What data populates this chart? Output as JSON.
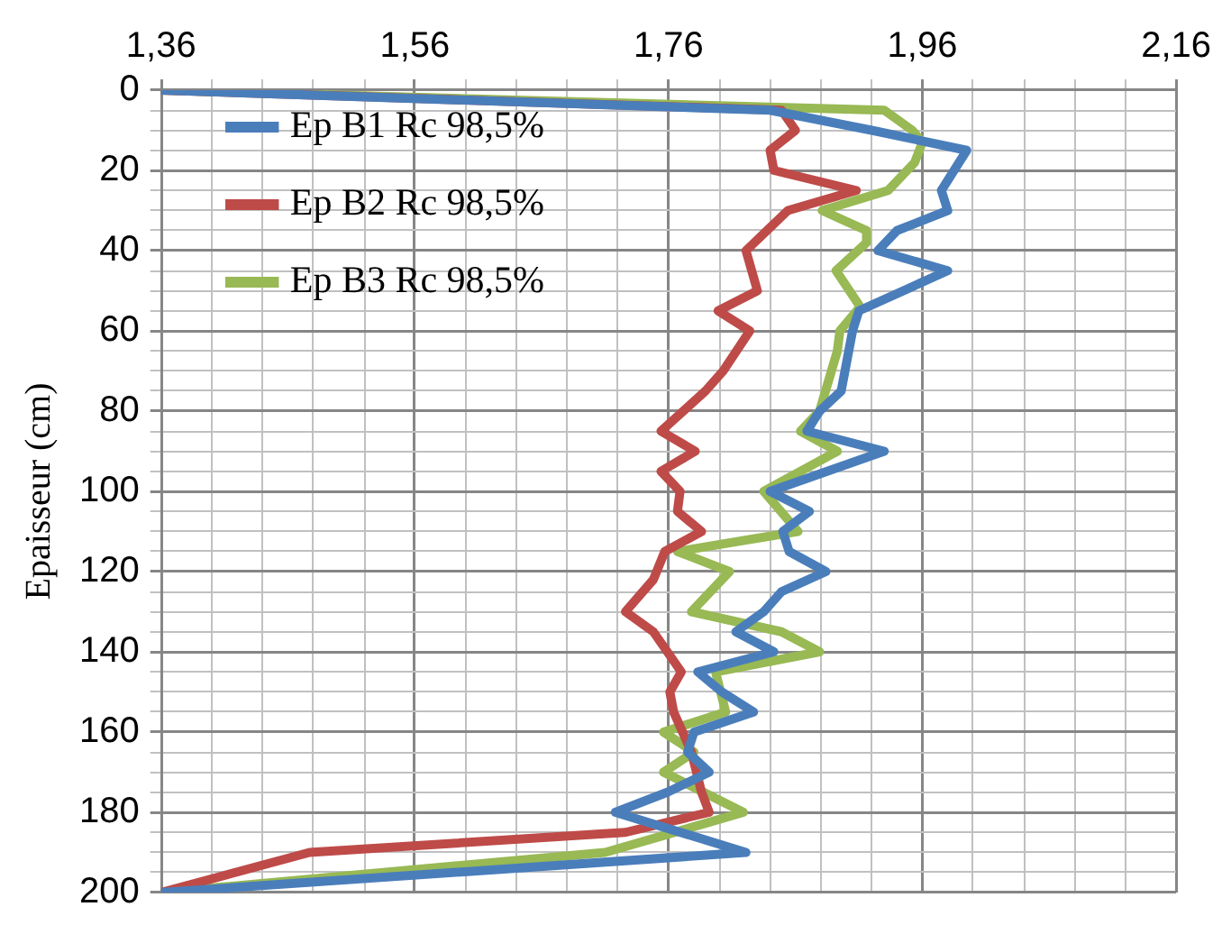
{
  "chart_data": {
    "type": "line",
    "ylabel": "Epaisseur (cm)",
    "xlim": [
      1.36,
      2.16
    ],
    "ylim": [
      200,
      0
    ],
    "xticks": [
      {
        "value": 1.36,
        "label": "1,36"
      },
      {
        "value": 1.4,
        "label": null
      },
      {
        "value": 1.44,
        "label": null
      },
      {
        "value": 1.48,
        "label": null
      },
      {
        "value": 1.52,
        "label": null
      },
      {
        "value": 1.56,
        "label": "1,56"
      },
      {
        "value": 1.6,
        "label": null
      },
      {
        "value": 1.64,
        "label": null
      },
      {
        "value": 1.68,
        "label": null
      },
      {
        "value": 1.72,
        "label": null
      },
      {
        "value": 1.76,
        "label": "1,76"
      },
      {
        "value": 1.8,
        "label": null
      },
      {
        "value": 1.84,
        "label": null
      },
      {
        "value": 1.88,
        "label": null
      },
      {
        "value": 1.92,
        "label": null
      },
      {
        "value": 1.96,
        "label": "1,96"
      },
      {
        "value": 2.0,
        "label": null
      },
      {
        "value": 2.04,
        "label": null
      },
      {
        "value": 2.08,
        "label": null
      },
      {
        "value": 2.12,
        "label": null
      },
      {
        "value": 2.16,
        "label": "2,16"
      }
    ],
    "yticks": [
      0,
      {
        "value": 5,
        "label": null
      },
      {
        "value": 10,
        "label": null
      },
      {
        "value": 15,
        "label": null
      },
      20,
      {
        "value": 25,
        "label": null
      },
      {
        "value": 30,
        "label": null
      },
      {
        "value": 35,
        "label": null
      },
      40,
      {
        "value": 45,
        "label": null
      },
      {
        "value": 50,
        "label": null
      },
      {
        "value": 55,
        "label": null
      },
      60,
      {
        "value": 65,
        "label": null
      },
      {
        "value": 70,
        "label": null
      },
      {
        "value": 75,
        "label": null
      },
      80,
      {
        "value": 85,
        "label": null
      },
      {
        "value": 90,
        "label": null
      },
      {
        "value": 95,
        "label": null
      },
      100,
      {
        "value": 105,
        "label": null
      },
      {
        "value": 110,
        "label": null
      },
      {
        "value": 115,
        "label": null
      },
      120,
      {
        "value": 125,
        "label": null
      },
      {
        "value": 130,
        "label": null
      },
      {
        "value": 135,
        "label": null
      },
      140,
      {
        "value": 145,
        "label": null
      },
      {
        "value": 150,
        "label": null
      },
      {
        "value": 155,
        "label": null
      },
      160,
      {
        "value": 165,
        "label": null
      },
      {
        "value": 170,
        "label": null
      },
      {
        "value": 175,
        "label": null
      },
      180,
      {
        "value": 185,
        "label": null
      },
      {
        "value": 190,
        "label": null
      },
      {
        "value": 195,
        "label": null
      },
      200
    ],
    "grid": true,
    "legend": "top left",
    "marker": "none",
    "line_style": "solid",
    "series": [
      {
        "name": "Ep B1 Rc 98,5%",
        "color": "#4a7ebb",
        "x": [
          1.36,
          1.84,
          1.92,
          1.995,
          1.975,
          1.98,
          1.94,
          1.925,
          1.98,
          1.91,
          1.905,
          1.896,
          1.879,
          1.869,
          1.93,
          1.84,
          1.871,
          1.85,
          1.855,
          1.884,
          1.849,
          1.835,
          1.813,
          1.843,
          1.783,
          1.802,
          1.827,
          1.78,
          1.775,
          1.792,
          1.759,
          1.718,
          1.821,
          1.36
        ],
        "values": [
          0,
          5,
          10,
          15,
          25,
          30,
          35,
          40,
          45,
          55,
          60,
          75,
          80,
          85,
          90,
          100,
          105,
          110,
          115,
          120,
          125,
          130,
          135,
          140,
          145,
          150,
          155,
          160,
          165,
          170,
          175,
          180,
          190,
          200
        ]
      },
      {
        "name": "Ep B2 Rc 98,5%",
        "color": "#be4b48",
        "x": [
          1.36,
          1.849,
          1.86,
          1.84,
          1.843,
          1.908,
          1.854,
          1.821,
          1.83,
          1.799,
          1.824,
          1.803,
          1.789,
          1.754,
          1.781,
          1.754,
          1.769,
          1.767,
          1.786,
          1.757,
          1.748,
          1.726,
          1.748,
          1.759,
          1.77,
          1.761,
          1.764,
          1.778,
          1.786,
          1.792,
          1.726,
          1.477,
          1.36
        ],
        "values": [
          0,
          5,
          10,
          15,
          20,
          25,
          30,
          40,
          50,
          55,
          60,
          70,
          75,
          85,
          90,
          95,
          100,
          105,
          110,
          115,
          122,
          130,
          135,
          140,
          145,
          150,
          155,
          165,
          175,
          180,
          185,
          190,
          200
        ]
      },
      {
        "name": "Ep B3 Rc 98,5%",
        "color": "#98b954",
        "x": [
          1.36,
          1.93,
          1.952,
          1.96,
          1.954,
          1.933,
          1.881,
          1.916,
          1.916,
          1.892,
          1.911,
          1.895,
          1.893,
          1.879,
          1.864,
          1.893,
          1.835,
          1.862,
          1.767,
          1.808,
          1.778,
          1.849,
          1.879,
          1.797,
          1.805,
          1.756,
          1.78,
          1.756,
          1.819,
          1.71,
          1.36
        ],
        "values": [
          0,
          5,
          10,
          13,
          18,
          25,
          30,
          35,
          38,
          45,
          54,
          60,
          65,
          80,
          85,
          90,
          100,
          110,
          115,
          120,
          130,
          135,
          140,
          145,
          155,
          160,
          165,
          170,
          180,
          190,
          200
        ]
      }
    ]
  }
}
